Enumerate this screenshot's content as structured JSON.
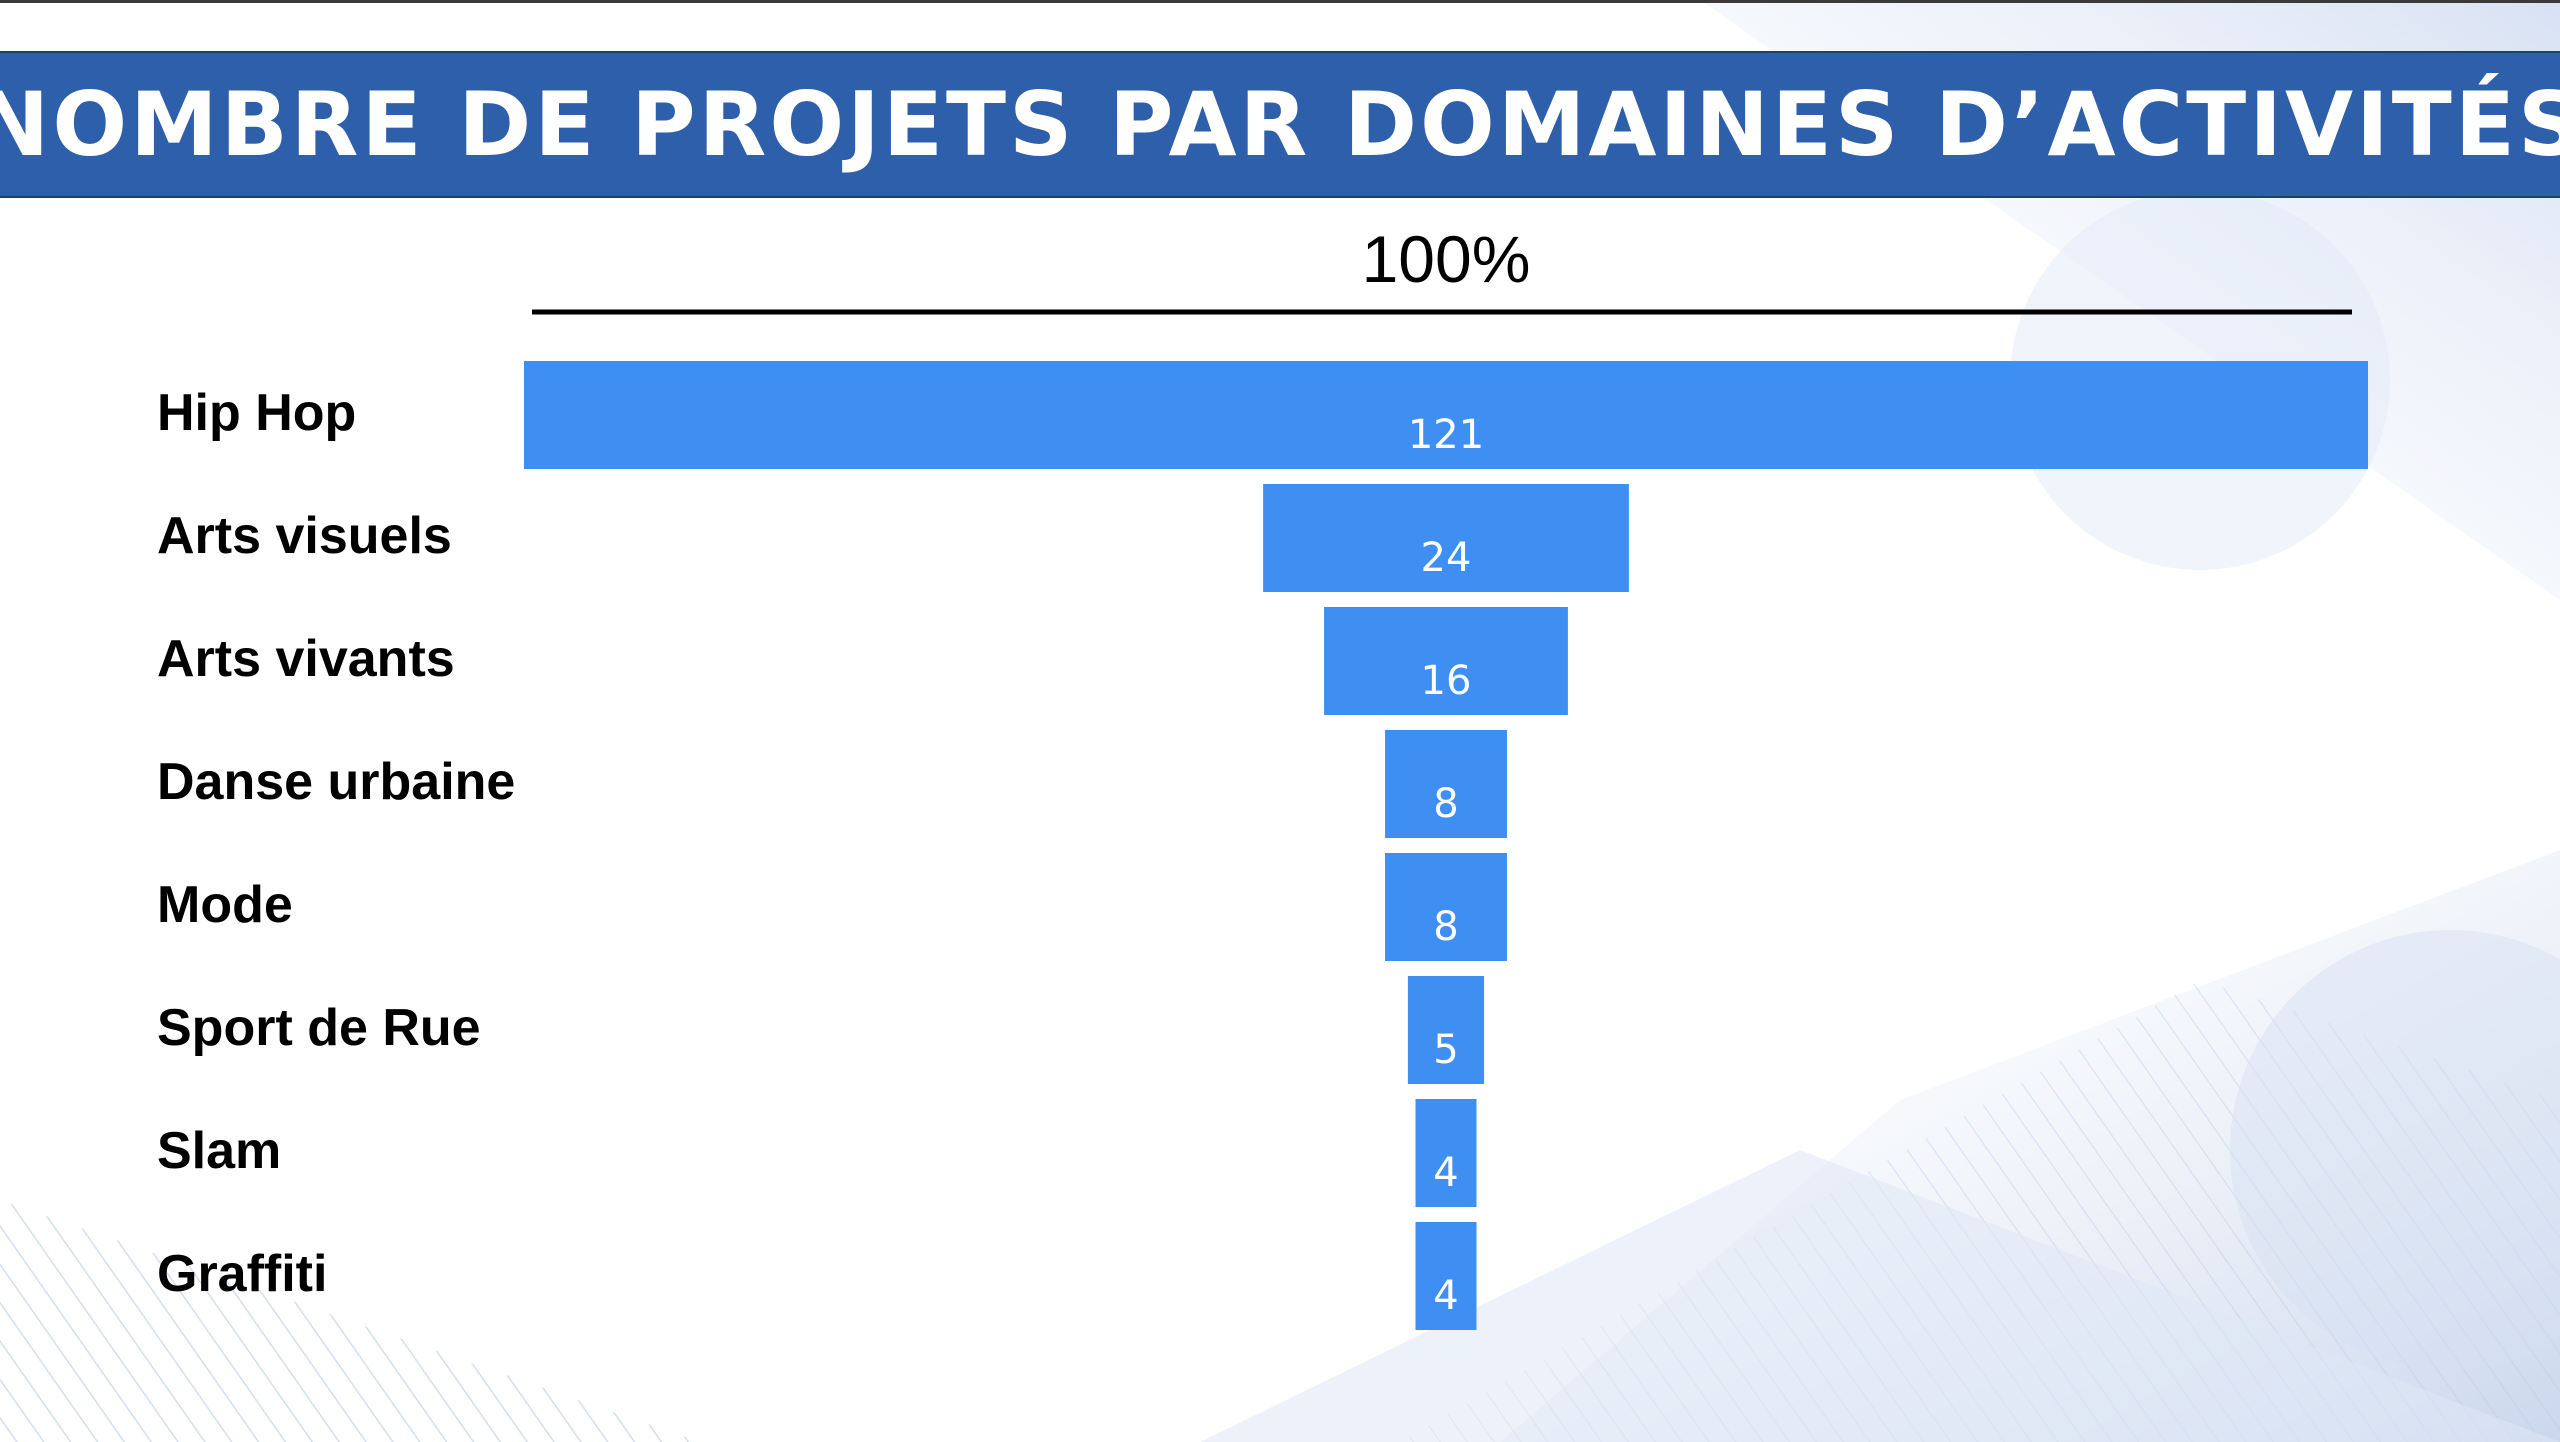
{
  "title": "NOMBRE DE PROJETS PAR DOMAINES D’ACTIVITÉS",
  "colors": {
    "title_bar": "#2d5faa",
    "bar": "#3f8ef2",
    "bar_label": "#ffffff",
    "category_text": "#000000"
  },
  "chart_data": {
    "type": "funnel",
    "top_label": "100%",
    "categories": [
      "Hip Hop",
      "Arts visuels",
      "Arts vivants",
      "Danse urbaine",
      "Mode",
      "Sport de Rue",
      "Slam",
      "Graffiti"
    ],
    "values": [
      121,
      24,
      16,
      8,
      8,
      5,
      4,
      4
    ]
  }
}
